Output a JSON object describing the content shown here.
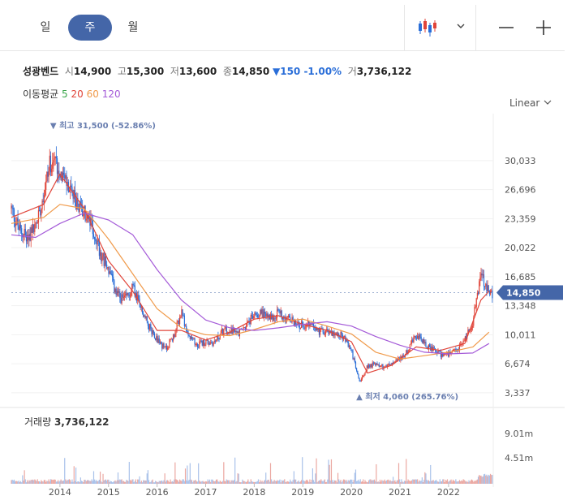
{
  "tabs": [
    {
      "label": "일",
      "active": false
    },
    {
      "label": "주",
      "active": true
    },
    {
      "label": "월",
      "active": false
    }
  ],
  "controls": {
    "chart_type_icon": "candlestick-icon",
    "dropdown_icon": "chevron-down-icon",
    "zoom_out_icon": "minus-icon",
    "zoom_in_icon": "plus-icon"
  },
  "quote": {
    "name": "성광벤드",
    "open_label": "시",
    "open": "14,900",
    "high_label": "고",
    "high": "15,300",
    "low_label": "저",
    "low": "13,600",
    "close_label": "종",
    "close": "14,850",
    "change": "▼150 -1.00%",
    "volume_label": "거",
    "volume": "3,736,122"
  },
  "moving_average": {
    "label": "이동평균",
    "periods": [
      {
        "label": "5",
        "color": "#3aa64a"
      },
      {
        "label": "20",
        "color": "#e0453a"
      },
      {
        "label": "60",
        "color": "#f09a4a"
      },
      {
        "label": "120",
        "color": "#a45ad8"
      }
    ]
  },
  "scale": {
    "label": "Linear",
    "icon": "chevron-down-icon"
  },
  "volume_panel": {
    "label": "거래량",
    "value": "3,736,122"
  },
  "colors": {
    "up": "#e0453a",
    "down": "#2a6ed8",
    "accent": "#4466a8",
    "ma5": "#3aa64a",
    "ma20": "#e0453a",
    "ma60": "#f09a4a",
    "ma120": "#a45ad8"
  },
  "chart_data": {
    "type": "candlestick",
    "interval": "weekly",
    "price_axis": {
      "ticks": [
        "30,033",
        "26,696",
        "23,359",
        "20,022",
        "16,685",
        "13,348",
        "10,011",
        "6,674",
        "3,337"
      ],
      "range": [
        2200,
        34500
      ],
      "scale": "linear",
      "grid": true,
      "position": "right"
    },
    "volume_axis": {
      "ticks": [
        "9.01m",
        "4.51m"
      ]
    },
    "x_axis": {
      "labels": [
        "2014",
        "2015",
        "2016",
        "2017",
        "2018",
        "2019",
        "2020",
        "2021",
        "2022"
      ],
      "range": [
        "2013-01",
        "2022-12"
      ]
    },
    "last_price": {
      "label": "14,850",
      "value": 14850
    },
    "high_marker": {
      "text": "▼ 최고 31,500 (-52.86%)",
      "value": 31500,
      "date": "2013-11"
    },
    "low_marker": {
      "text": "▲ 최저 4,060 (265.76%)",
      "value": 4060,
      "date": "2020-03"
    },
    "price_path": [
      [
        "2013-01",
        24500
      ],
      [
        "2013-03",
        22000
      ],
      [
        "2013-05",
        21200
      ],
      [
        "2013-07",
        22500
      ],
      [
        "2013-09",
        26500
      ],
      [
        "2013-11",
        30500
      ],
      [
        "2014-01",
        29000
      ],
      [
        "2014-03",
        27000
      ],
      [
        "2014-05",
        25000
      ],
      [
        "2014-07",
        24000
      ],
      [
        "2014-09",
        22500
      ],
      [
        "2014-11",
        19500
      ],
      [
        "2015-01",
        17500
      ],
      [
        "2015-03",
        14500
      ],
      [
        "2015-05",
        14000
      ],
      [
        "2015-07",
        15500
      ],
      [
        "2015-09",
        13000
      ],
      [
        "2015-11",
        11000
      ],
      [
        "2016-01",
        9500
      ],
      [
        "2016-03",
        8300
      ],
      [
        "2016-05",
        9800
      ],
      [
        "2016-07",
        12500
      ],
      [
        "2016-09",
        9600
      ],
      [
        "2016-11",
        8900
      ],
      [
        "2017-01",
        9200
      ],
      [
        "2017-03",
        9100
      ],
      [
        "2017-05",
        10300
      ],
      [
        "2017-07",
        10700
      ],
      [
        "2017-09",
        10100
      ],
      [
        "2017-11",
        11000
      ],
      [
        "2018-01",
        12300
      ],
      [
        "2018-03",
        12600
      ],
      [
        "2018-05",
        11800
      ],
      [
        "2018-07",
        12700
      ],
      [
        "2018-09",
        11800
      ],
      [
        "2018-11",
        11400
      ],
      [
        "2019-01",
        11000
      ],
      [
        "2019-03",
        11200
      ],
      [
        "2019-05",
        10300
      ],
      [
        "2019-07",
        10500
      ],
      [
        "2019-09",
        10200
      ],
      [
        "2019-11",
        9800
      ],
      [
        "2020-01",
        8200
      ],
      [
        "2020-03",
        4600
      ],
      [
        "2020-05",
        6400
      ],
      [
        "2020-07",
        6700
      ],
      [
        "2020-09",
        6300
      ],
      [
        "2020-11",
        6600
      ],
      [
        "2021-01",
        7300
      ],
      [
        "2021-03",
        8200
      ],
      [
        "2021-05",
        10100
      ],
      [
        "2021-07",
        9000
      ],
      [
        "2021-09",
        8300
      ],
      [
        "2021-11",
        7800
      ],
      [
        "2022-01",
        7700
      ],
      [
        "2022-03",
        8100
      ],
      [
        "2022-05",
        9500
      ],
      [
        "2022-07",
        11500
      ],
      [
        "2022-09",
        17200
      ],
      [
        "2022-10",
        15500
      ],
      [
        "2022-11",
        14850
      ]
    ],
    "moving_averages": [
      {
        "name": "20",
        "values": [
          [
            "2013-01",
            23500
          ],
          [
            "2013-09",
            25000
          ],
          [
            "2014-01",
            28500
          ],
          [
            "2014-07",
            24500
          ],
          [
            "2015-01",
            18500
          ],
          [
            "2015-07",
            15000
          ],
          [
            "2016-01",
            10500
          ],
          [
            "2016-07",
            10500
          ],
          [
            "2017-01",
            9400
          ],
          [
            "2017-07",
            10300
          ],
          [
            "2018-01",
            11800
          ],
          [
            "2018-07",
            12200
          ],
          [
            "2019-01",
            11200
          ],
          [
            "2019-07",
            10500
          ],
          [
            "2020-01",
            9200
          ],
          [
            "2020-05",
            5600
          ],
          [
            "2020-11",
            6500
          ],
          [
            "2021-05",
            8600
          ],
          [
            "2021-11",
            8200
          ],
          [
            "2022-05",
            9000
          ],
          [
            "2022-09",
            14000
          ],
          [
            "2022-11",
            15000
          ]
        ]
      },
      {
        "name": "60",
        "values": [
          [
            "2013-01",
            22800
          ],
          [
            "2013-09",
            23500
          ],
          [
            "2014-01",
            25000
          ],
          [
            "2014-07",
            24500
          ],
          [
            "2015-01",
            21000
          ],
          [
            "2015-07",
            17000
          ],
          [
            "2016-01",
            13000
          ],
          [
            "2016-07",
            10800
          ],
          [
            "2017-01",
            10000
          ],
          [
            "2017-07",
            9900
          ],
          [
            "2018-01",
            10600
          ],
          [
            "2018-07",
            11500
          ],
          [
            "2019-01",
            11800
          ],
          [
            "2019-07",
            11000
          ],
          [
            "2020-01",
            10100
          ],
          [
            "2020-07",
            8000
          ],
          [
            "2021-01",
            7200
          ],
          [
            "2021-07",
            7600
          ],
          [
            "2022-01",
            8000
          ],
          [
            "2022-07",
            8600
          ],
          [
            "2022-11",
            10300
          ]
        ]
      },
      {
        "name": "120",
        "values": [
          [
            "2013-01",
            21500
          ],
          [
            "2013-07",
            21200
          ],
          [
            "2014-01",
            22800
          ],
          [
            "2014-07",
            24000
          ],
          [
            "2015-01",
            23200
          ],
          [
            "2015-07",
            21500
          ],
          [
            "2016-01",
            17500
          ],
          [
            "2016-07",
            14000
          ],
          [
            "2017-01",
            11700
          ],
          [
            "2017-07",
            10800
          ],
          [
            "2018-01",
            10500
          ],
          [
            "2018-07",
            10800
          ],
          [
            "2019-01",
            11200
          ],
          [
            "2019-07",
            11500
          ],
          [
            "2020-01",
            11000
          ],
          [
            "2020-07",
            9800
          ],
          [
            "2021-01",
            8800
          ],
          [
            "2021-07",
            8000
          ],
          [
            "2022-01",
            7800
          ],
          [
            "2022-07",
            7900
          ],
          [
            "2022-11",
            9000
          ]
        ]
      }
    ]
  }
}
